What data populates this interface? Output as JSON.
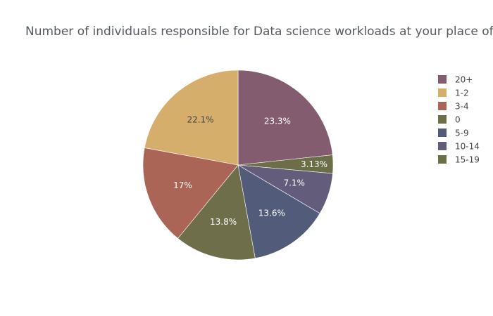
{
  "chart_data": {
    "type": "pie",
    "title": "Number of individuals responsible for Data science workloads at your place of business",
    "legend_position": "right",
    "slices": [
      {
        "label": "20+",
        "value": 23.3,
        "text": "23.3%",
        "color": "#845c70"
      },
      {
        "label": "15-19",
        "value": 3.13,
        "text": "3.13%",
        "color": "#6b6e47"
      },
      {
        "label": "10-14",
        "value": 7.1,
        "text": "7.1%",
        "color": "#635c7b"
      },
      {
        "label": "5-9",
        "value": 13.6,
        "text": "13.6%",
        "color": "#535b7a"
      },
      {
        "label": "0",
        "value": 13.8,
        "text": "13.8%",
        "color": "#6f6e4b"
      },
      {
        "label": "3-4",
        "value": 17.0,
        "text": "17%",
        "color": "#ab6557"
      },
      {
        "label": "1-2",
        "value": 22.1,
        "text": "22.1%",
        "color": "#d6ae6b"
      }
    ],
    "legend_order": [
      "20+",
      "1-2",
      "3-4",
      "0",
      "5-9",
      "10-14",
      "15-19"
    ]
  }
}
